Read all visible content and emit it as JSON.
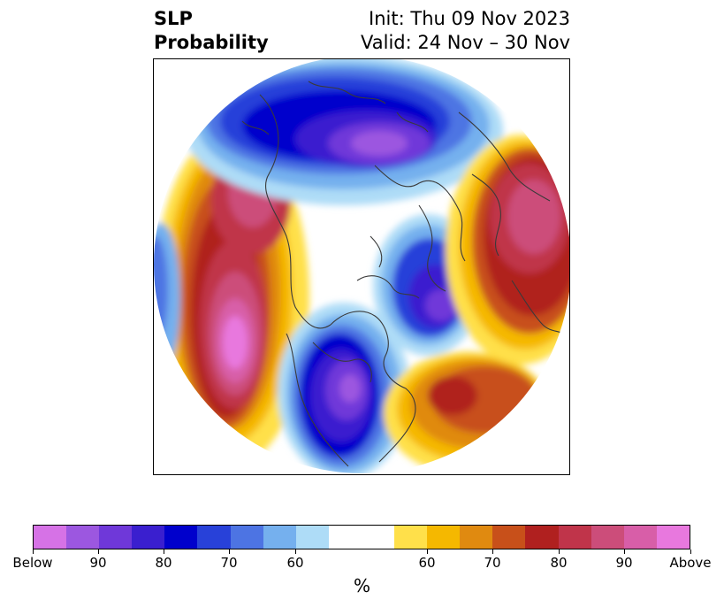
{
  "header": {
    "title_line1": "SLP",
    "title_line2": "Probability",
    "init": "Init: Thu 09 Nov 2023",
    "valid": "Valid: 24 Nov – 30 Nov"
  },
  "colorbar": {
    "colors": [
      "#d672e6",
      "#9c57e0",
      "#6f38d9",
      "#3a1fcf",
      "#0000cc",
      "#2841d9",
      "#4d74e3",
      "#75b0ee",
      "#aedcf7",
      "#ffffff",
      "#ffffff",
      "#ffe04a",
      "#f5b800",
      "#e08a10",
      "#c8501a",
      "#b0201f",
      "#c0344a",
      "#cc4d7a",
      "#d85ea8",
      "#e878de"
    ],
    "tick_labels": [
      "Below",
      "90",
      "80",
      "70",
      "60",
      "60",
      "70",
      "80",
      "90",
      "Above"
    ],
    "unit_label": "%"
  }
}
